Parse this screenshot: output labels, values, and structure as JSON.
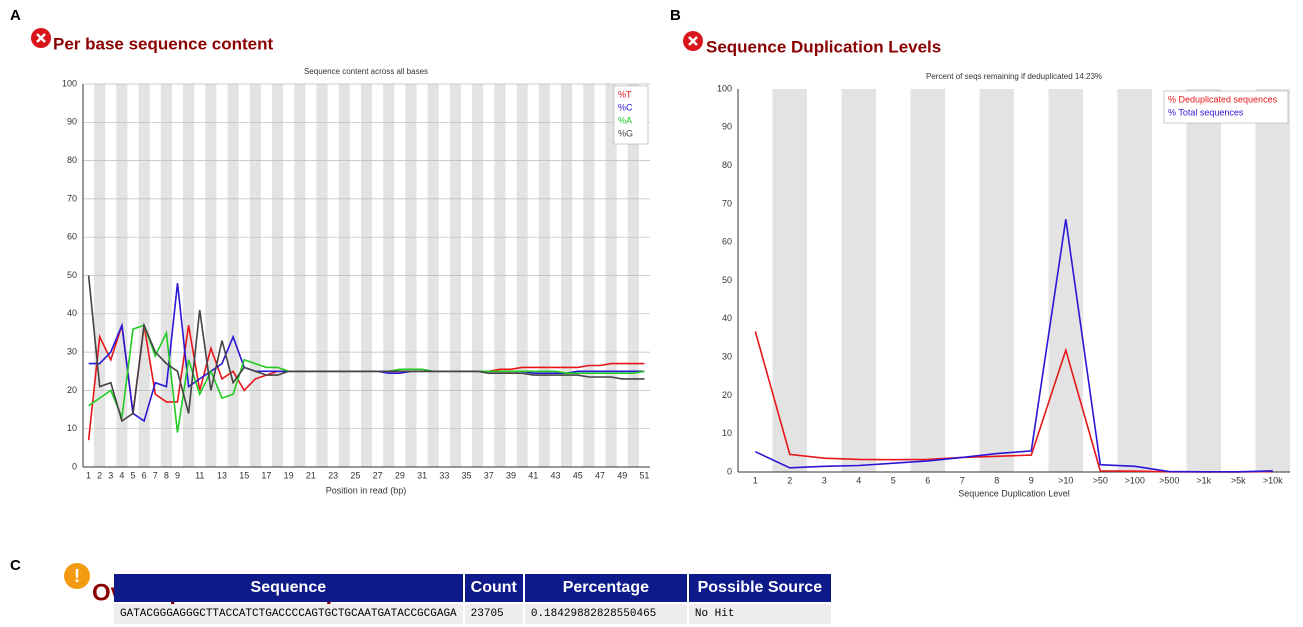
{
  "panels": [
    "A",
    "B",
    "C"
  ],
  "chart_data": [
    {
      "type": "line",
      "title": "Per base sequence content",
      "subtitle": "Sequence content across all bases",
      "x_label": "Position in read (bp)",
      "grid": true,
      "stripes": true,
      "legend": "top-right",
      "categories": [
        "1",
        "2",
        "3",
        "4",
        "5",
        "6",
        "7",
        "8",
        "9",
        null,
        "11",
        null,
        "13",
        null,
        "15",
        null,
        "17",
        null,
        "19",
        null,
        "21",
        null,
        "23",
        null,
        "25",
        null,
        "27",
        null,
        "29",
        null,
        "31",
        null,
        "33",
        null,
        "35",
        null,
        "37",
        null,
        "39",
        null,
        "41",
        null,
        "43",
        null,
        "45",
        null,
        "47",
        null,
        "49",
        null,
        "51"
      ],
      "ylim": [
        0,
        100
      ],
      "yticks": [
        0,
        10,
        20,
        30,
        40,
        50,
        60,
        70,
        80,
        90,
        100
      ],
      "series": [
        {
          "name": "%T",
          "color": "#e8161a",
          "values": [
            7,
            34,
            28,
            37,
            14,
            37,
            19,
            17,
            17,
            37,
            20,
            31,
            23,
            25,
            20,
            23,
            24,
            25,
            25,
            25,
            25,
            25,
            25,
            25,
            25,
            25,
            25,
            25,
            25,
            25,
            25,
            25,
            25,
            25,
            25,
            25,
            25,
            25.5,
            25.5,
            26,
            26,
            26,
            26,
            26,
            26,
            26.5,
            26.5,
            27,
            27,
            27,
            27
          ]
        },
        {
          "name": "%C",
          "color": "#2a17d6",
          "values": [
            27,
            27,
            30,
            37,
            14,
            12,
            22,
            21,
            48,
            21,
            23,
            25,
            27,
            34,
            26,
            25,
            25,
            25,
            25,
            25,
            25,
            25,
            25,
            25,
            25,
            25,
            25,
            24.5,
            24.5,
            25,
            25,
            25,
            25,
            25,
            25,
            25,
            25,
            25,
            25,
            25,
            24.5,
            24.5,
            24.5,
            24.5,
            25,
            25,
            25,
            25,
            25,
            25,
            25
          ]
        },
        {
          "name": "%A",
          "color": "#22cc22",
          "values": [
            16,
            18,
            20,
            13,
            36,
            37,
            29,
            35,
            9,
            28,
            19,
            25,
            18,
            19,
            28,
            27,
            26,
            26,
            25,
            25,
            25,
            25,
            25,
            25,
            25,
            25,
            25,
            25,
            25.5,
            25.5,
            25.5,
            25,
            25,
            25,
            25,
            25,
            25,
            25,
            25,
            25,
            25,
            25,
            25,
            24.5,
            24.5,
            24.5,
            24.5,
            24.5,
            24.5,
            24.5,
            25
          ]
        },
        {
          "name": "%G",
          "color": "#444444",
          "values": [
            50,
            21,
            22,
            12,
            14,
            37,
            30,
            27,
            25,
            14,
            41,
            20,
            33,
            22,
            26,
            25,
            24,
            24,
            25,
            25,
            25,
            25,
            25,
            25,
            25,
            25,
            25,
            25,
            25,
            25,
            25,
            25,
            25,
            25,
            25,
            25,
            24.5,
            24.5,
            24.5,
            24.5,
            24,
            24,
            24,
            24,
            24,
            23.5,
            23.5,
            23.5,
            23,
            23,
            23
          ]
        }
      ]
    },
    {
      "type": "line",
      "title": "Sequence Duplication Levels",
      "subtitle": "Percent of seqs remaining if deduplicated 14.23%",
      "x_label": "Sequence Duplication Level",
      "grid": false,
      "stripes": true,
      "legend": "top-right",
      "categories": [
        "1",
        "2",
        "3",
        "4",
        "5",
        "6",
        "7",
        "8",
        "9",
        ">10",
        ">50",
        ">100",
        ">500",
        ">1k",
        ">5k",
        ">10k"
      ],
      "ylim": [
        0,
        100
      ],
      "yticks": [
        0,
        10,
        20,
        30,
        40,
        50,
        60,
        70,
        80,
        90,
        100
      ],
      "series": [
        {
          "name": "% Deduplicated sequences",
          "color": "#e8161a",
          "values": [
            36.7,
            4.6,
            3.6,
            3.3,
            3.2,
            3.3,
            3.8,
            4.1,
            4.4,
            31.8,
            0.3,
            0.2,
            0.05,
            0.01,
            0.01,
            0.1
          ]
        },
        {
          "name": "% Total sequences",
          "color": "#2a17d6",
          "values": [
            5.3,
            1.1,
            1.5,
            1.7,
            2.3,
            2.9,
            3.8,
            4.8,
            5.5,
            66,
            1.9,
            1.5,
            0.1,
            0.05,
            0.05,
            0.3
          ]
        }
      ]
    }
  ],
  "table": {
    "title": "Overrepresented sequences",
    "header": [
      "Sequence",
      "Count",
      "Percentage",
      "Possible Source"
    ],
    "rows": [
      [
        "GATACGGGAGGGCTTACCATCTGACCCCAGTGCTGCAATGATACCGCGAGA",
        "23705",
        "0.18429882828550465",
        "No Hit"
      ]
    ]
  }
}
